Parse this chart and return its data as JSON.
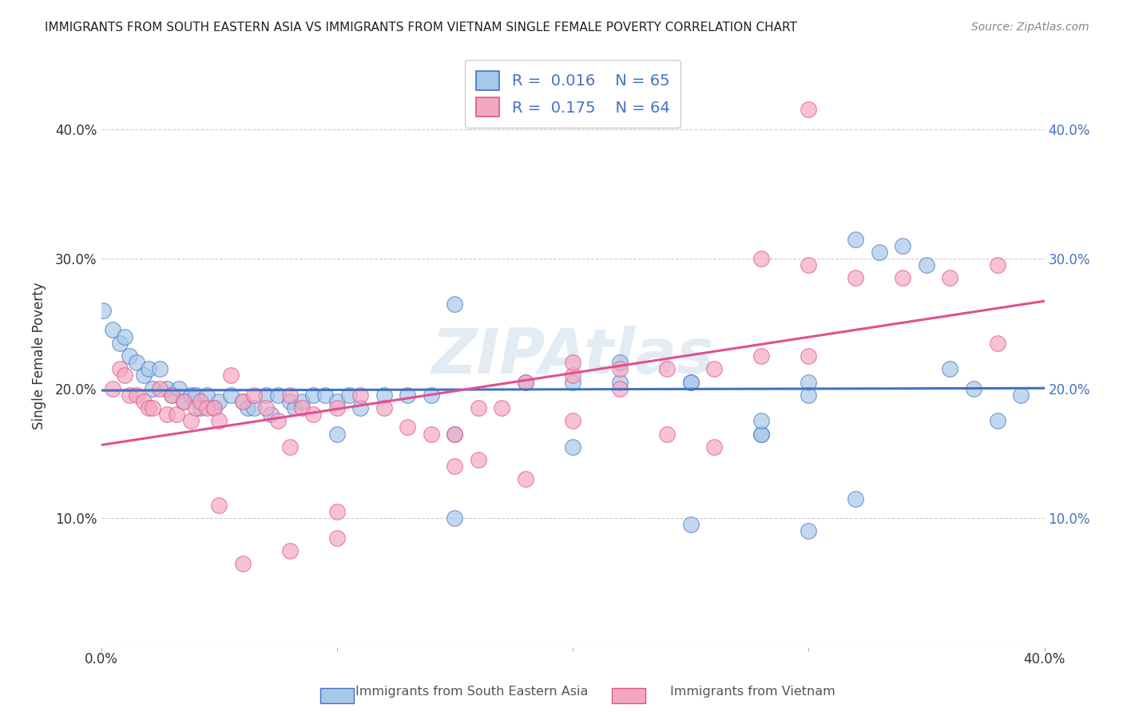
{
  "title": "IMMIGRANTS FROM SOUTH EASTERN ASIA VS IMMIGRANTS FROM VIETNAM SINGLE FEMALE POVERTY CORRELATION CHART",
  "source": "Source: ZipAtlas.com",
  "ylabel": "Single Female Poverty",
  "xlim": [
    0.0,
    0.4
  ],
  "ylim": [
    0.0,
    0.45
  ],
  "yticks": [
    0.0,
    0.1,
    0.2,
    0.3,
    0.4
  ],
  "ytick_labels_left": [
    "",
    "10.0%",
    "20.0%",
    "30.0%",
    "40.0%"
  ],
  "ytick_labels_right": [
    "",
    "10.0%",
    "20.0%",
    "30.0%",
    "40.0%"
  ],
  "xticks": [
    0.0,
    0.1,
    0.2,
    0.3,
    0.4
  ],
  "xtick_labels": [
    "0.0%",
    "",
    "",
    "",
    "40.0%"
  ],
  "legend_R1": "0.016",
  "legend_N1": "65",
  "legend_R2": "0.175",
  "legend_N2": "64",
  "color_blue": "#a8c8e8",
  "color_pink": "#f4a8c0",
  "line_blue": "#4472c4",
  "line_pink": "#e05090",
  "watermark": "ZIPAtlas",
  "blue_x": [
    0.001,
    0.005,
    0.008,
    0.01,
    0.012,
    0.015,
    0.018,
    0.02,
    0.022,
    0.025,
    0.028,
    0.03,
    0.033,
    0.035,
    0.038,
    0.04,
    0.042,
    0.045,
    0.048,
    0.05,
    0.055,
    0.06,
    0.062,
    0.065,
    0.07,
    0.072,
    0.075,
    0.08,
    0.082,
    0.085,
    0.09,
    0.095,
    0.1,
    0.105,
    0.11,
    0.12,
    0.13,
    0.14,
    0.15,
    0.18,
    0.2,
    0.22,
    0.25,
    0.28,
    0.3,
    0.32,
    0.33,
    0.34,
    0.35,
    0.36,
    0.37,
    0.38,
    0.39,
    0.25,
    0.28,
    0.3,
    0.32,
    0.2,
    0.22,
    0.15,
    0.25,
    0.3,
    0.15,
    0.28,
    0.1
  ],
  "blue_y": [
    0.26,
    0.245,
    0.235,
    0.24,
    0.225,
    0.22,
    0.21,
    0.215,
    0.2,
    0.215,
    0.2,
    0.195,
    0.2,
    0.19,
    0.195,
    0.195,
    0.185,
    0.195,
    0.185,
    0.19,
    0.195,
    0.19,
    0.185,
    0.185,
    0.195,
    0.18,
    0.195,
    0.19,
    0.185,
    0.19,
    0.195,
    0.195,
    0.19,
    0.195,
    0.185,
    0.195,
    0.195,
    0.195,
    0.265,
    0.205,
    0.205,
    0.22,
    0.205,
    0.165,
    0.205,
    0.315,
    0.305,
    0.31,
    0.295,
    0.215,
    0.2,
    0.175,
    0.195,
    0.205,
    0.165,
    0.195,
    0.115,
    0.155,
    0.205,
    0.1,
    0.095,
    0.09,
    0.165,
    0.175,
    0.165
  ],
  "pink_x": [
    0.005,
    0.008,
    0.01,
    0.012,
    0.015,
    0.018,
    0.02,
    0.022,
    0.025,
    0.028,
    0.03,
    0.032,
    0.035,
    0.038,
    0.04,
    0.042,
    0.045,
    0.048,
    0.05,
    0.055,
    0.06,
    0.065,
    0.07,
    0.075,
    0.08,
    0.085,
    0.09,
    0.1,
    0.11,
    0.12,
    0.13,
    0.14,
    0.15,
    0.16,
    0.17,
    0.18,
    0.2,
    0.22,
    0.24,
    0.26,
    0.28,
    0.3,
    0.32,
    0.34,
    0.36,
    0.38,
    0.3,
    0.22,
    0.26,
    0.08,
    0.15,
    0.18,
    0.1,
    0.05,
    0.2,
    0.24,
    0.3,
    0.16,
    0.08,
    0.06,
    0.1,
    0.28,
    0.38,
    0.2
  ],
  "pink_y": [
    0.2,
    0.215,
    0.21,
    0.195,
    0.195,
    0.19,
    0.185,
    0.185,
    0.2,
    0.18,
    0.195,
    0.18,
    0.19,
    0.175,
    0.185,
    0.19,
    0.185,
    0.185,
    0.175,
    0.21,
    0.19,
    0.195,
    0.185,
    0.175,
    0.195,
    0.185,
    0.18,
    0.185,
    0.195,
    0.185,
    0.17,
    0.165,
    0.165,
    0.185,
    0.185,
    0.205,
    0.21,
    0.215,
    0.215,
    0.215,
    0.225,
    0.295,
    0.285,
    0.285,
    0.285,
    0.235,
    0.225,
    0.2,
    0.155,
    0.155,
    0.14,
    0.13,
    0.105,
    0.11,
    0.175,
    0.165,
    0.415,
    0.145,
    0.075,
    0.065,
    0.085,
    0.3,
    0.295,
    0.22
  ]
}
